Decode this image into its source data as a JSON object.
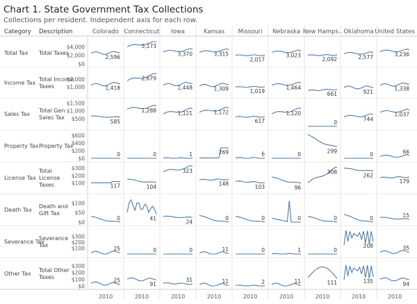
{
  "title": "Chart 1. State Government Tax Collections",
  "subtitle": "Collections per resident. Independent axis for each row.",
  "chart_data": {
    "type": "line",
    "headers": {
      "category": "Category",
      "description": "Description"
    },
    "states": [
      "Colorado",
      "Connecticut",
      "Iowa",
      "Kansas",
      "Missouri",
      "Nebraska",
      "New Hamps..",
      "Oklahoma",
      "United States"
    ],
    "x_tick_label": "2010",
    "line_color": "#4e79a7",
    "rows": [
      {
        "category": "Total Tax",
        "description": "Total Taxes",
        "ylim": [
          0,
          5200
        ],
        "ticks": [
          "$4,000",
          "$2,000",
          "$0"
        ],
        "tick_values": [
          4000,
          2000,
          0
        ],
        "labels": [
          "2,596",
          "5,173",
          "3,370",
          "3,315",
          "2,017",
          "3,023",
          "2,092",
          "2,577",
          "3,236"
        ],
        "values": [
          2596,
          5173,
          3370,
          3315,
          2017,
          3023,
          2092,
          2577,
          3236
        ],
        "start": [
          2500,
          4000,
          2800,
          2700,
          2000,
          2700,
          2000,
          2400,
          2900
        ],
        "shape": [
          "wave",
          "rise",
          "rise",
          "rise",
          "flat",
          "rise",
          "flat",
          "rise",
          "rise"
        ]
      },
      {
        "category": "Income Tax",
        "description": "Total Income Taxes",
        "ylim": [
          0,
          3100
        ],
        "ticks": [
          "$2,000",
          "$1,000"
        ],
        "tick_values": [
          2000,
          1000
        ],
        "labels": [
          "1,418",
          "2,679",
          "1,448",
          "1,309",
          "1,019",
          "1,464",
          "661",
          "921",
          "1,338"
        ],
        "values": [
          1418,
          2679,
          1448,
          1309,
          1019,
          1464,
          661,
          921,
          1338
        ],
        "start": [
          1200,
          1800,
          1200,
          1100,
          950,
          1200,
          500,
          900,
          1200
        ],
        "shape": [
          "wave",
          "rise",
          "wave",
          "wave",
          "flat",
          "rise",
          "flat",
          "wave",
          "wave"
        ]
      },
      {
        "category": "Sales Tax",
        "description": "Total Gen Sales Tax",
        "ylim": [
          0,
          1600
        ],
        "ticks": [
          "$1,500",
          "$1,000",
          "$500"
        ],
        "tick_values": [
          1500,
          1000,
          500
        ],
        "labels": [
          "585",
          "1,288",
          "1,121",
          "1,172",
          "617",
          "1,120",
          "0",
          "744",
          "1,037"
        ],
        "values": [
          585,
          1288,
          1121,
          1172,
          617,
          1120,
          0,
          744,
          1037
        ],
        "start": [
          650,
          1100,
          800,
          900,
          600,
          800,
          0,
          600,
          900
        ],
        "shape": [
          "fall",
          "rise",
          "rise",
          "rise",
          "flat",
          "rise",
          "zero",
          "rise",
          "rise"
        ]
      },
      {
        "category": "Property Tax",
        "description": "Property Tax",
        "ylim": [
          0,
          650
        ],
        "ticks": [
          "$600",
          "$400",
          "$200",
          "$0"
        ],
        "tick_values": [
          600,
          400,
          200,
          0
        ],
        "labels": [
          "0",
          "0",
          "1",
          "269",
          "6",
          "0",
          "299",
          "0",
          "66"
        ],
        "values": [
          0,
          0,
          1,
          269,
          6,
          0,
          299,
          0,
          66
        ],
        "start": [
          0,
          0,
          1,
          8,
          6,
          0,
          620,
          0,
          45
        ],
        "shape": [
          "zero",
          "zero",
          "flat",
          "jump",
          "flat",
          "zero",
          "fall",
          "zero",
          "rise"
        ]
      },
      {
        "category": "License Tax",
        "description": "Total License Taxes",
        "ylim": [
          0,
          340
        ],
        "ticks": [
          "$300",
          "$200",
          "$100"
        ],
        "tick_values": [
          300,
          200,
          100
        ],
        "labels": [
          "117",
          "104",
          "323",
          "148",
          "103",
          "96",
          "308",
          "262",
          "179"
        ],
        "values": [
          117,
          104,
          323,
          148,
          103,
          96,
          308,
          262,
          179
        ],
        "start": [
          100,
          150,
          250,
          140,
          120,
          180,
          100,
          300,
          170
        ],
        "shape": [
          "jump",
          "fall",
          "rise",
          "flat",
          "flat",
          "fall",
          "rise",
          "fall",
          "flat"
        ]
      },
      {
        "category": "Death Tax",
        "description": "Death and Gift Tax",
        "ylim": [
          0,
          130
        ],
        "ticks": [
          "$100",
          "$50",
          "$0"
        ],
        "tick_values": [
          100,
          50,
          0
        ],
        "labels": [
          "0",
          "41",
          "24",
          "0",
          "0",
          "0",
          "0",
          "0",
          "15"
        ],
        "values": [
          0,
          41,
          24,
          0,
          0,
          0,
          0,
          0,
          15
        ],
        "start": [
          30,
          100,
          30,
          35,
          30,
          20,
          30,
          40,
          25
        ],
        "shape": [
          "fall",
          "spiky",
          "fall",
          "fall",
          "fall",
          "spike",
          "fall",
          "fall",
          "fall"
        ]
      },
      {
        "category": "Severance Tax",
        "description": "Severance Tax",
        "ylim": [
          0,
          420
        ],
        "ticks": [
          "$300",
          "$200",
          "$100"
        ],
        "tick_values": [
          300,
          200,
          100
        ],
        "labels": [
          "25",
          "0",
          "0",
          "11",
          "0",
          "1",
          "0",
          "208",
          "35"
        ],
        "values": [
          25,
          0,
          0,
          11,
          0,
          1,
          0,
          208,
          35
        ],
        "start": [
          20,
          0,
          0,
          15,
          0,
          1,
          0,
          250,
          30
        ],
        "shape": [
          "wave",
          "zero",
          "zero",
          "wave",
          "zero",
          "flat",
          "zero",
          "volatile",
          "wave"
        ]
      },
      {
        "category": "Other Tax",
        "description": "Total Other Taxes",
        "ylim": [
          0,
          370
        ],
        "ticks": [
          "$300",
          "$200",
          "$100",
          "$0"
        ],
        "tick_values": [
          300,
          200,
          100,
          0
        ],
        "labels": [
          "25",
          "91",
          "31",
          "11",
          "2",
          "11",
          "111",
          "135",
          "94"
        ],
        "values": [
          25,
          91,
          31,
          11,
          2,
          11,
          111,
          135,
          94
        ],
        "start": [
          40,
          100,
          40,
          20,
          5,
          20,
          120,
          150,
          100
        ],
        "shape": [
          "wave",
          "wave",
          "flat",
          "wave",
          "flat",
          "wave",
          "hump",
          "volatile",
          "wave"
        ]
      }
    ]
  }
}
